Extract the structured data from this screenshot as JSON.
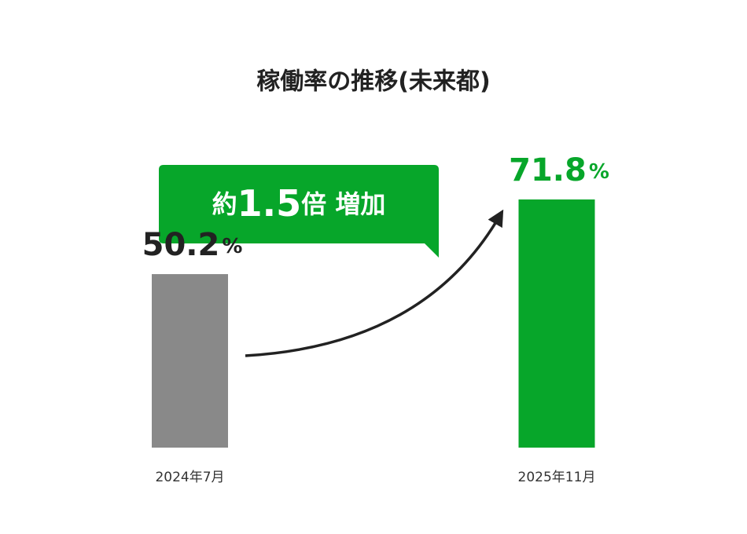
{
  "chart_data": {
    "type": "bar",
    "title": "稼働率の推移(未来都)",
    "categories": [
      "2024年7月",
      "2025年11月"
    ],
    "values": [
      50.2,
      71.8
    ],
    "value_labels": [
      "50.2%",
      "71.8%"
    ],
    "colors": [
      "#898989",
      "#07a62a"
    ],
    "value_label_colors": [
      "#222222",
      "#07a62a"
    ],
    "annotation": "約1.5倍 増加",
    "annotation_color": "#07a62a"
  }
}
